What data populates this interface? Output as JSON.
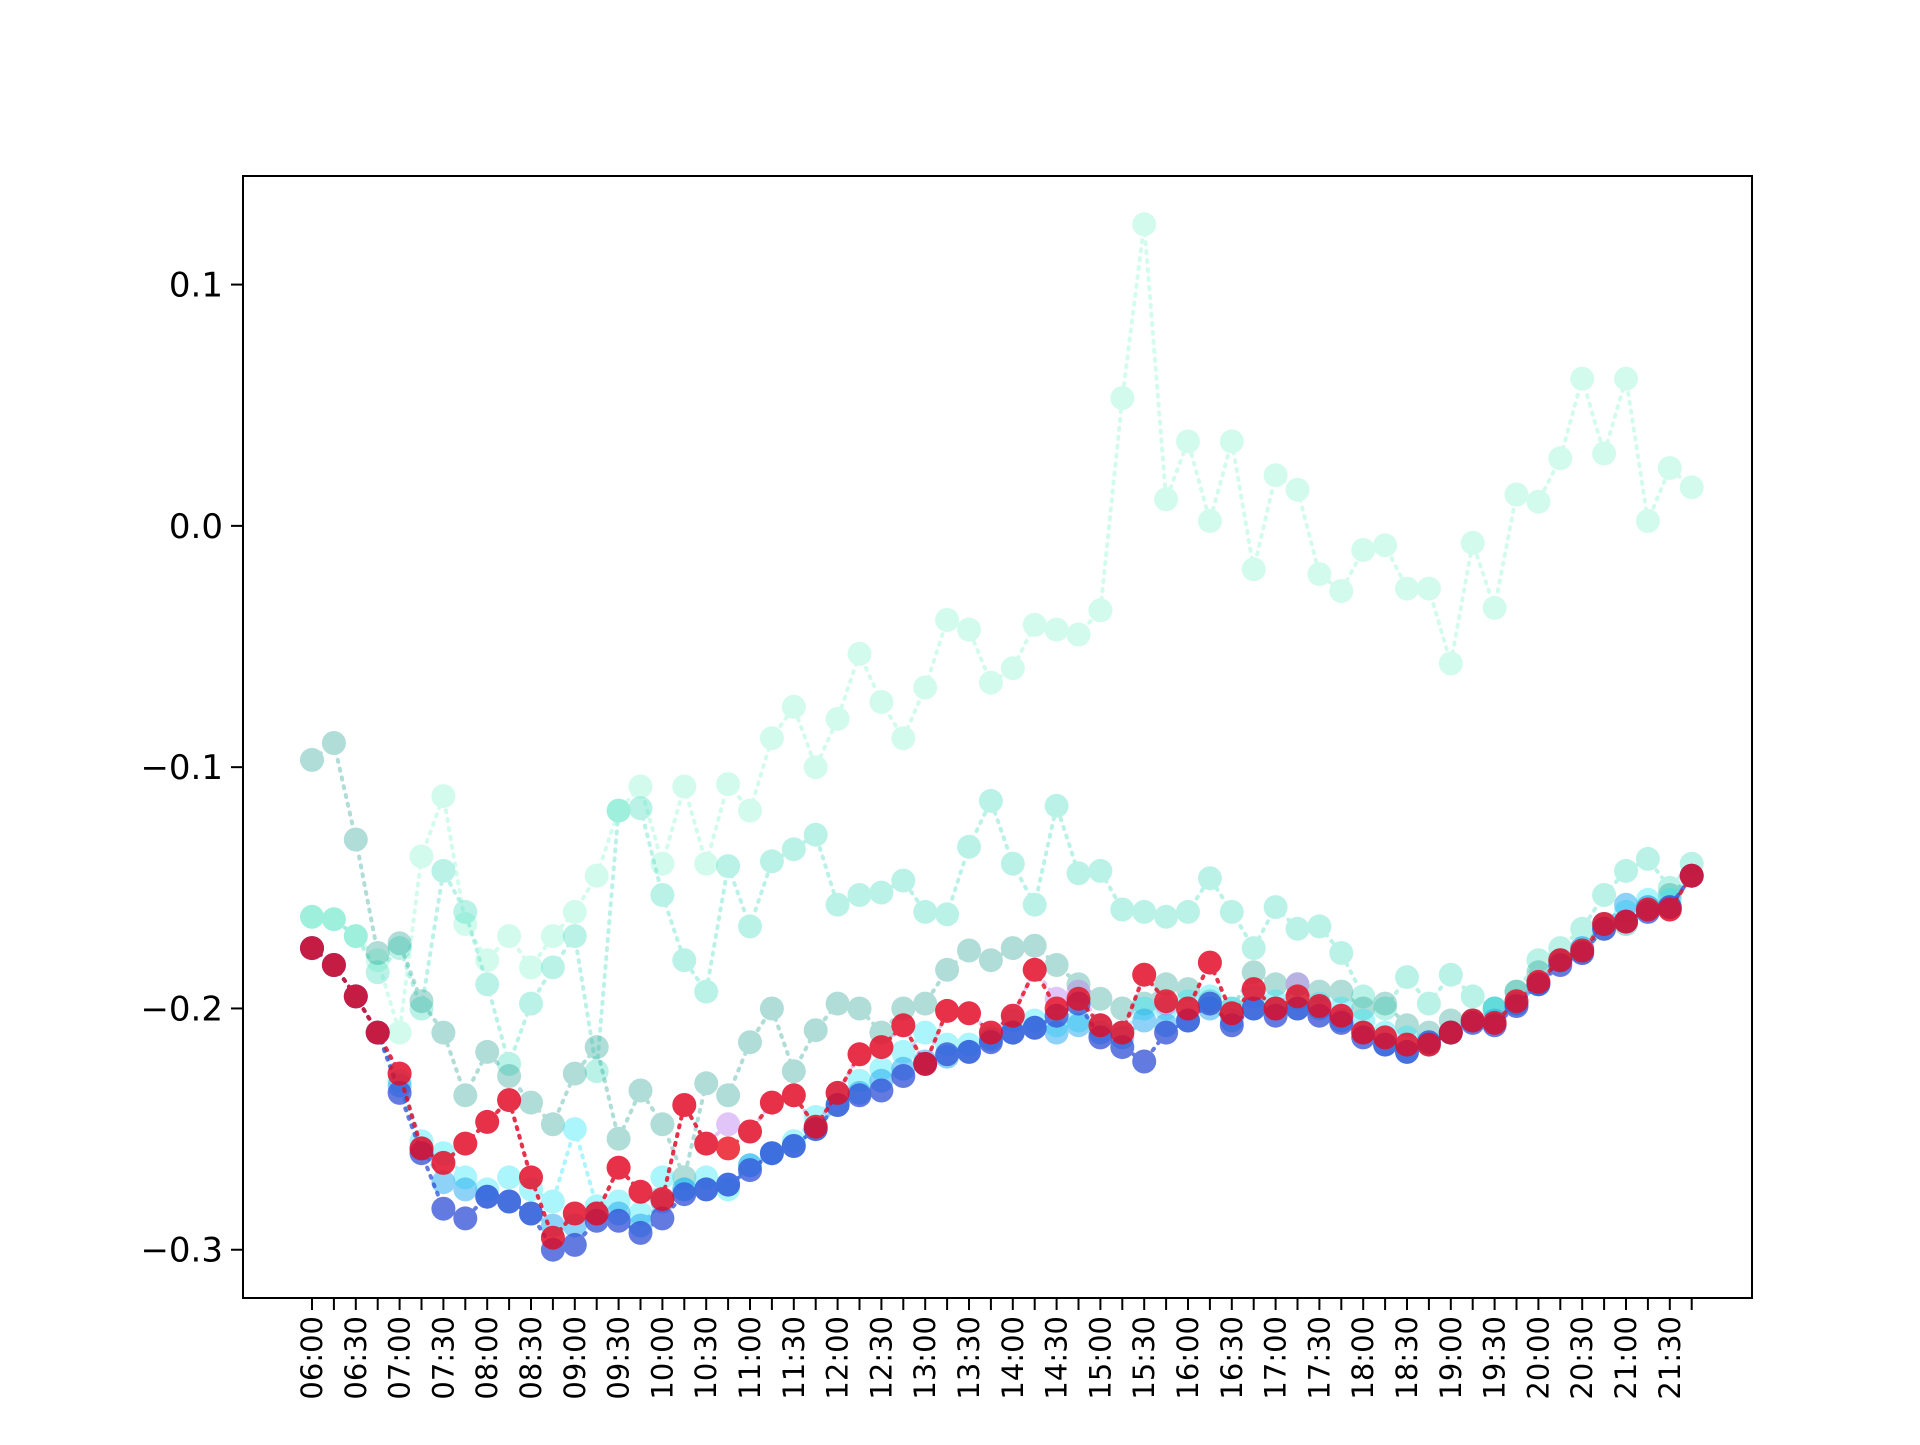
{
  "chart_data": {
    "type": "line",
    "title": "",
    "xlabel": "",
    "ylabel": "",
    "grid": false,
    "markers": "circle",
    "line_style": "dotted",
    "ylim": [
      -0.32,
      0.145
    ],
    "yticks": [
      -0.3,
      -0.2,
      -0.1,
      0.0,
      0.1
    ],
    "ytick_labels": [
      "−0.3",
      "−0.2",
      "−0.1",
      "0.0",
      "0.1"
    ],
    "x": [
      "06:00",
      "06:15",
      "06:30",
      "06:45",
      "07:00",
      "07:15",
      "07:30",
      "07:45",
      "08:00",
      "08:15",
      "08:30",
      "08:45",
      "09:00",
      "09:15",
      "09:30",
      "09:45",
      "10:00",
      "10:15",
      "10:30",
      "10:45",
      "11:00",
      "11:15",
      "11:30",
      "11:45",
      "12:00",
      "12:15",
      "12:30",
      "12:45",
      "13:00",
      "13:15",
      "13:30",
      "13:45",
      "14:00",
      "14:15",
      "14:30",
      "14:45",
      "15:00",
      "15:15",
      "15:30",
      "15:45",
      "16:00",
      "16:15",
      "16:30",
      "16:45",
      "17:00",
      "17:15",
      "17:30",
      "17:45",
      "18:00",
      "18:15",
      "18:30",
      "18:45",
      "19:00",
      "19:15",
      "19:30",
      "19:45",
      "20:00",
      "20:15",
      "20:30",
      "20:45",
      "21:00",
      "21:15",
      "21:30",
      "21:45"
    ],
    "xtick_labels": [
      "06:00",
      "06:30",
      "07:00",
      "07:30",
      "08:00",
      "08:30",
      "09:00",
      "09:30",
      "10:00",
      "10:30",
      "11:00",
      "11:30",
      "12:00",
      "12:30",
      "13:00",
      "13:30",
      "14:00",
      "14:30",
      "15:00",
      "15:30",
      "16:00",
      "16:30",
      "17:00",
      "17:30",
      "18:00",
      "18:30",
      "19:00",
      "19:30",
      "20:00",
      "20:30",
      "21:00",
      "21:30"
    ],
    "series": [
      {
        "color": "#7ff5d0",
        "opacity": 0.35,
        "values": [
          -0.162,
          -0.163,
          -0.17,
          -0.18,
          -0.21,
          -0.137,
          -0.112,
          -0.165,
          -0.18,
          -0.17,
          -0.183,
          -0.17,
          -0.16,
          -0.145,
          -0.118,
          -0.108,
          -0.14,
          -0.108,
          -0.14,
          -0.107,
          -0.118,
          -0.088,
          -0.075,
          -0.1,
          -0.08,
          -0.053,
          -0.073,
          -0.088,
          -0.067,
          -0.039,
          -0.043,
          -0.065,
          -0.059,
          -0.041,
          -0.043,
          -0.045,
          -0.035,
          0.053,
          0.125,
          0.011,
          0.035,
          0.002,
          0.035,
          -0.018,
          0.021,
          0.015,
          -0.02,
          -0.027,
          -0.01,
          -0.008,
          -0.026,
          -0.026,
          -0.057,
          -0.007,
          -0.034,
          0.013,
          0.01,
          0.028,
          0.061,
          0.03,
          0.061,
          0.002,
          0.024,
          0.016
        ]
      },
      {
        "color": "#40dcc0",
        "opacity": 0.35,
        "values": [
          -0.162,
          -0.163,
          -0.17,
          -0.185,
          -0.175,
          -0.2,
          -0.143,
          -0.16,
          -0.19,
          -0.223,
          -0.198,
          -0.183,
          -0.17,
          -0.226,
          -0.118,
          -0.117,
          -0.153,
          -0.18,
          -0.193,
          -0.141,
          -0.166,
          -0.139,
          -0.134,
          -0.128,
          -0.157,
          -0.153,
          -0.152,
          -0.147,
          -0.16,
          -0.161,
          -0.133,
          -0.114,
          -0.14,
          -0.157,
          -0.116,
          -0.144,
          -0.143,
          -0.159,
          -0.16,
          -0.162,
          -0.16,
          -0.146,
          -0.16,
          -0.175,
          -0.158,
          -0.167,
          -0.166,
          -0.177,
          -0.195,
          -0.2,
          -0.187,
          -0.198,
          -0.186,
          -0.195,
          -0.2,
          -0.193,
          -0.18,
          -0.175,
          -0.167,
          -0.153,
          -0.143,
          -0.138,
          -0.15,
          -0.14
        ]
      },
      {
        "color": "#20a090",
        "opacity": 0.35,
        "values": [
          -0.097,
          -0.09,
          -0.13,
          -0.177,
          -0.173,
          -0.197,
          -0.21,
          -0.236,
          -0.218,
          -0.228,
          -0.239,
          -0.248,
          -0.227,
          -0.216,
          -0.254,
          -0.234,
          -0.248,
          -0.27,
          -0.231,
          -0.236,
          -0.214,
          -0.2,
          -0.226,
          -0.209,
          -0.198,
          -0.2,
          -0.21,
          -0.2,
          -0.198,
          -0.184,
          -0.176,
          -0.18,
          -0.175,
          -0.174,
          -0.182,
          -0.19,
          -0.196,
          -0.2,
          -0.198,
          -0.19,
          -0.192,
          -0.197,
          -0.2,
          -0.185,
          -0.19,
          -0.19,
          -0.193,
          -0.193,
          -0.2,
          -0.198,
          -0.207,
          -0.21,
          -0.205,
          -0.205,
          -0.2,
          -0.193,
          -0.185,
          -0.18,
          -0.177,
          -0.167,
          -0.165,
          -0.158,
          -0.153,
          -0.145
        ]
      },
      {
        "color": "#30e8f8",
        "opacity": 0.4,
        "values": [
          -0.175,
          -0.182,
          -0.195,
          -0.21,
          -0.23,
          -0.255,
          -0.26,
          -0.27,
          -0.275,
          -0.27,
          -0.275,
          -0.28,
          -0.25,
          -0.282,
          -0.28,
          -0.285,
          -0.27,
          -0.275,
          -0.27,
          -0.275,
          -0.265,
          -0.26,
          -0.255,
          -0.245,
          -0.235,
          -0.23,
          -0.225,
          -0.218,
          -0.21,
          -0.215,
          -0.215,
          -0.212,
          -0.205,
          -0.205,
          -0.207,
          -0.205,
          -0.207,
          -0.21,
          -0.2,
          -0.2,
          -0.197,
          -0.195,
          -0.2,
          -0.195,
          -0.197,
          -0.196,
          -0.198,
          -0.2,
          -0.205,
          -0.21,
          -0.212,
          -0.214,
          -0.21,
          -0.205,
          -0.2,
          -0.198,
          -0.19,
          -0.18,
          -0.175,
          -0.165,
          -0.16,
          -0.155,
          -0.155,
          -0.145
        ]
      },
      {
        "color": "#20a8f0",
        "opacity": 0.5,
        "values": [
          -0.175,
          -0.182,
          -0.195,
          -0.21,
          -0.232,
          -0.258,
          -0.272,
          -0.275,
          -0.278,
          -0.28,
          -0.285,
          -0.29,
          -0.29,
          -0.285,
          -0.285,
          -0.29,
          -0.28,
          -0.275,
          -0.275,
          -0.273,
          -0.265,
          -0.26,
          -0.257,
          -0.25,
          -0.24,
          -0.235,
          -0.23,
          -0.225,
          -0.222,
          -0.22,
          -0.218,
          -0.213,
          -0.21,
          -0.208,
          -0.21,
          -0.207,
          -0.21,
          -0.212,
          -0.205,
          -0.207,
          -0.205,
          -0.2,
          -0.205,
          -0.2,
          -0.2,
          -0.2,
          -0.2,
          -0.205,
          -0.21,
          -0.215,
          -0.218,
          -0.215,
          -0.21,
          -0.205,
          -0.205,
          -0.198,
          -0.19,
          -0.18,
          -0.175,
          -0.165,
          -0.157,
          -0.158,
          -0.158,
          -0.145
        ]
      },
      {
        "color": "#c080f0",
        "opacity": 0.45,
        "values": [
          -0.175,
          -0.182,
          -0.195,
          -0.21,
          -0.227,
          -0.258,
          -0.264,
          -0.256,
          -0.247,
          -0.238,
          -0.27,
          -0.295,
          -0.285,
          -0.285,
          -0.266,
          -0.276,
          -0.279,
          -0.24,
          -0.256,
          -0.248,
          -0.251,
          -0.239,
          -0.236,
          -0.249,
          -0.235,
          -0.219,
          -0.216,
          -0.207,
          -0.223,
          -0.201,
          -0.202,
          -0.21,
          -0.203,
          -0.184,
          -0.196,
          -0.193,
          -0.207,
          -0.21,
          -0.186,
          -0.198,
          -0.2,
          -0.181,
          -0.202,
          -0.192,
          -0.2,
          -0.19,
          -0.199,
          -0.203,
          -0.21,
          -0.212,
          -0.215,
          -0.215,
          -0.21,
          -0.205,
          -0.206,
          -0.197,
          -0.189,
          -0.18,
          -0.176,
          -0.165,
          -0.164,
          -0.159,
          -0.159,
          -0.145
        ]
      },
      {
        "color": "#3050d8",
        "opacity": 0.75,
        "values": [
          -0.175,
          -0.182,
          -0.195,
          -0.21,
          -0.235,
          -0.26,
          -0.283,
          -0.287,
          -0.278,
          -0.28,
          -0.285,
          -0.3,
          -0.298,
          -0.288,
          -0.288,
          -0.293,
          -0.287,
          -0.277,
          -0.275,
          -0.273,
          -0.267,
          -0.26,
          -0.257,
          -0.25,
          -0.24,
          -0.236,
          -0.234,
          -0.228,
          -0.223,
          -0.219,
          -0.218,
          -0.214,
          -0.21,
          -0.208,
          -0.203,
          -0.198,
          -0.212,
          -0.216,
          -0.222,
          -0.21,
          -0.205,
          -0.198,
          -0.207,
          -0.2,
          -0.203,
          -0.2,
          -0.203,
          -0.206,
          -0.212,
          -0.215,
          -0.218,
          -0.214,
          -0.21,
          -0.206,
          -0.207,
          -0.199,
          -0.19,
          -0.182,
          -0.177,
          -0.167,
          -0.164,
          -0.16,
          -0.158,
          -0.145
        ]
      },
      {
        "color": "#e80818",
        "opacity": 0.78,
        "values": [
          -0.175,
          -0.182,
          -0.195,
          -0.21,
          -0.227,
          -0.258,
          -0.264,
          -0.256,
          -0.247,
          -0.238,
          -0.27,
          -0.295,
          -0.285,
          -0.285,
          -0.266,
          -0.276,
          -0.279,
          -0.24,
          -0.256,
          -0.258,
          -0.251,
          -0.239,
          -0.236,
          -0.249,
          -0.235,
          -0.219,
          -0.216,
          -0.207,
          -0.223,
          -0.201,
          -0.202,
          -0.21,
          -0.203,
          -0.184,
          -0.2,
          -0.196,
          -0.207,
          -0.21,
          -0.186,
          -0.197,
          -0.2,
          -0.181,
          -0.202,
          -0.192,
          -0.2,
          -0.195,
          -0.199,
          -0.203,
          -0.21,
          -0.212,
          -0.215,
          -0.215,
          -0.21,
          -0.205,
          -0.206,
          -0.197,
          -0.189,
          -0.18,
          -0.176,
          -0.165,
          -0.164,
          -0.159,
          -0.159,
          -0.145
        ]
      }
    ]
  }
}
